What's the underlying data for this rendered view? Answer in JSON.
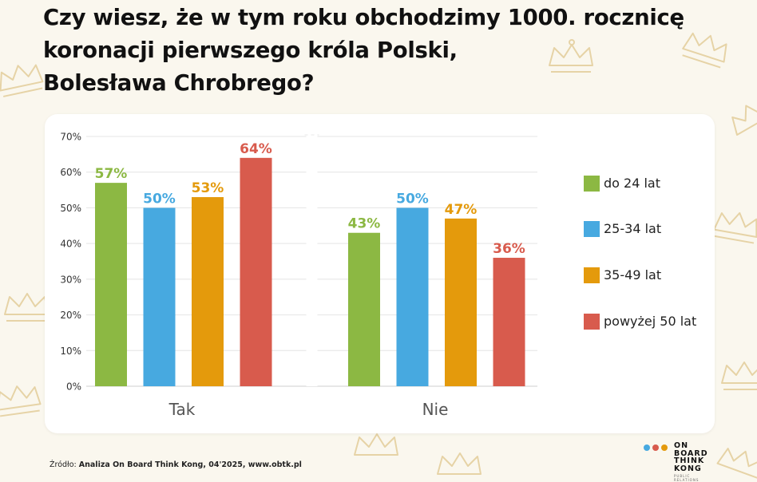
{
  "title_lines": [
    "Czy wiesz, że w tym roku obchodzimy 1000. rocznicę",
    "koronacji pierwszego króla Polski,",
    "Bolesława Chrobrego?"
  ],
  "chart_data": {
    "type": "bar",
    "title": "Czy wiesz, że w tym roku obchodzimy 1000. rocznicę koronacji pierwszego króla Polski, Bolesława Chrobrego?",
    "categories": [
      "Tak",
      "Nie"
    ],
    "series": [
      {
        "name": "do 24 lat",
        "color": "#8cb843",
        "values": [
          57,
          43
        ]
      },
      {
        "name": "25-34 lat",
        "color": "#47a9e0",
        "values": [
          50,
          50
        ]
      },
      {
        "name": "35-49 lat",
        "color": "#e49a0c",
        "values": [
          53,
          47
        ]
      },
      {
        "name": "powyżej 50 lat",
        "color": "#d85b4d",
        "values": [
          64,
          36
        ]
      }
    ],
    "value_suffix": "%",
    "ylim": [
      0,
      70
    ],
    "yticks": [
      0,
      10,
      20,
      30,
      40,
      50,
      60,
      70
    ],
    "ytick_labels": [
      "0%",
      "10%",
      "20%",
      "30%",
      "40%",
      "50%",
      "60%",
      "70%"
    ],
    "grid": true,
    "legend": "right"
  },
  "source": {
    "label": "Źródło: ",
    "text": "Analiza On Board Think Kong, 04'2025, www.obtk.pl"
  },
  "logo": {
    "lines": [
      "ON",
      "BOARD",
      "THINK",
      "KONG"
    ],
    "sub": "PUBLIC RELATIONS",
    "dot_colors": [
      "#47a9e0",
      "#d85b4d",
      "#e49a0c"
    ]
  }
}
